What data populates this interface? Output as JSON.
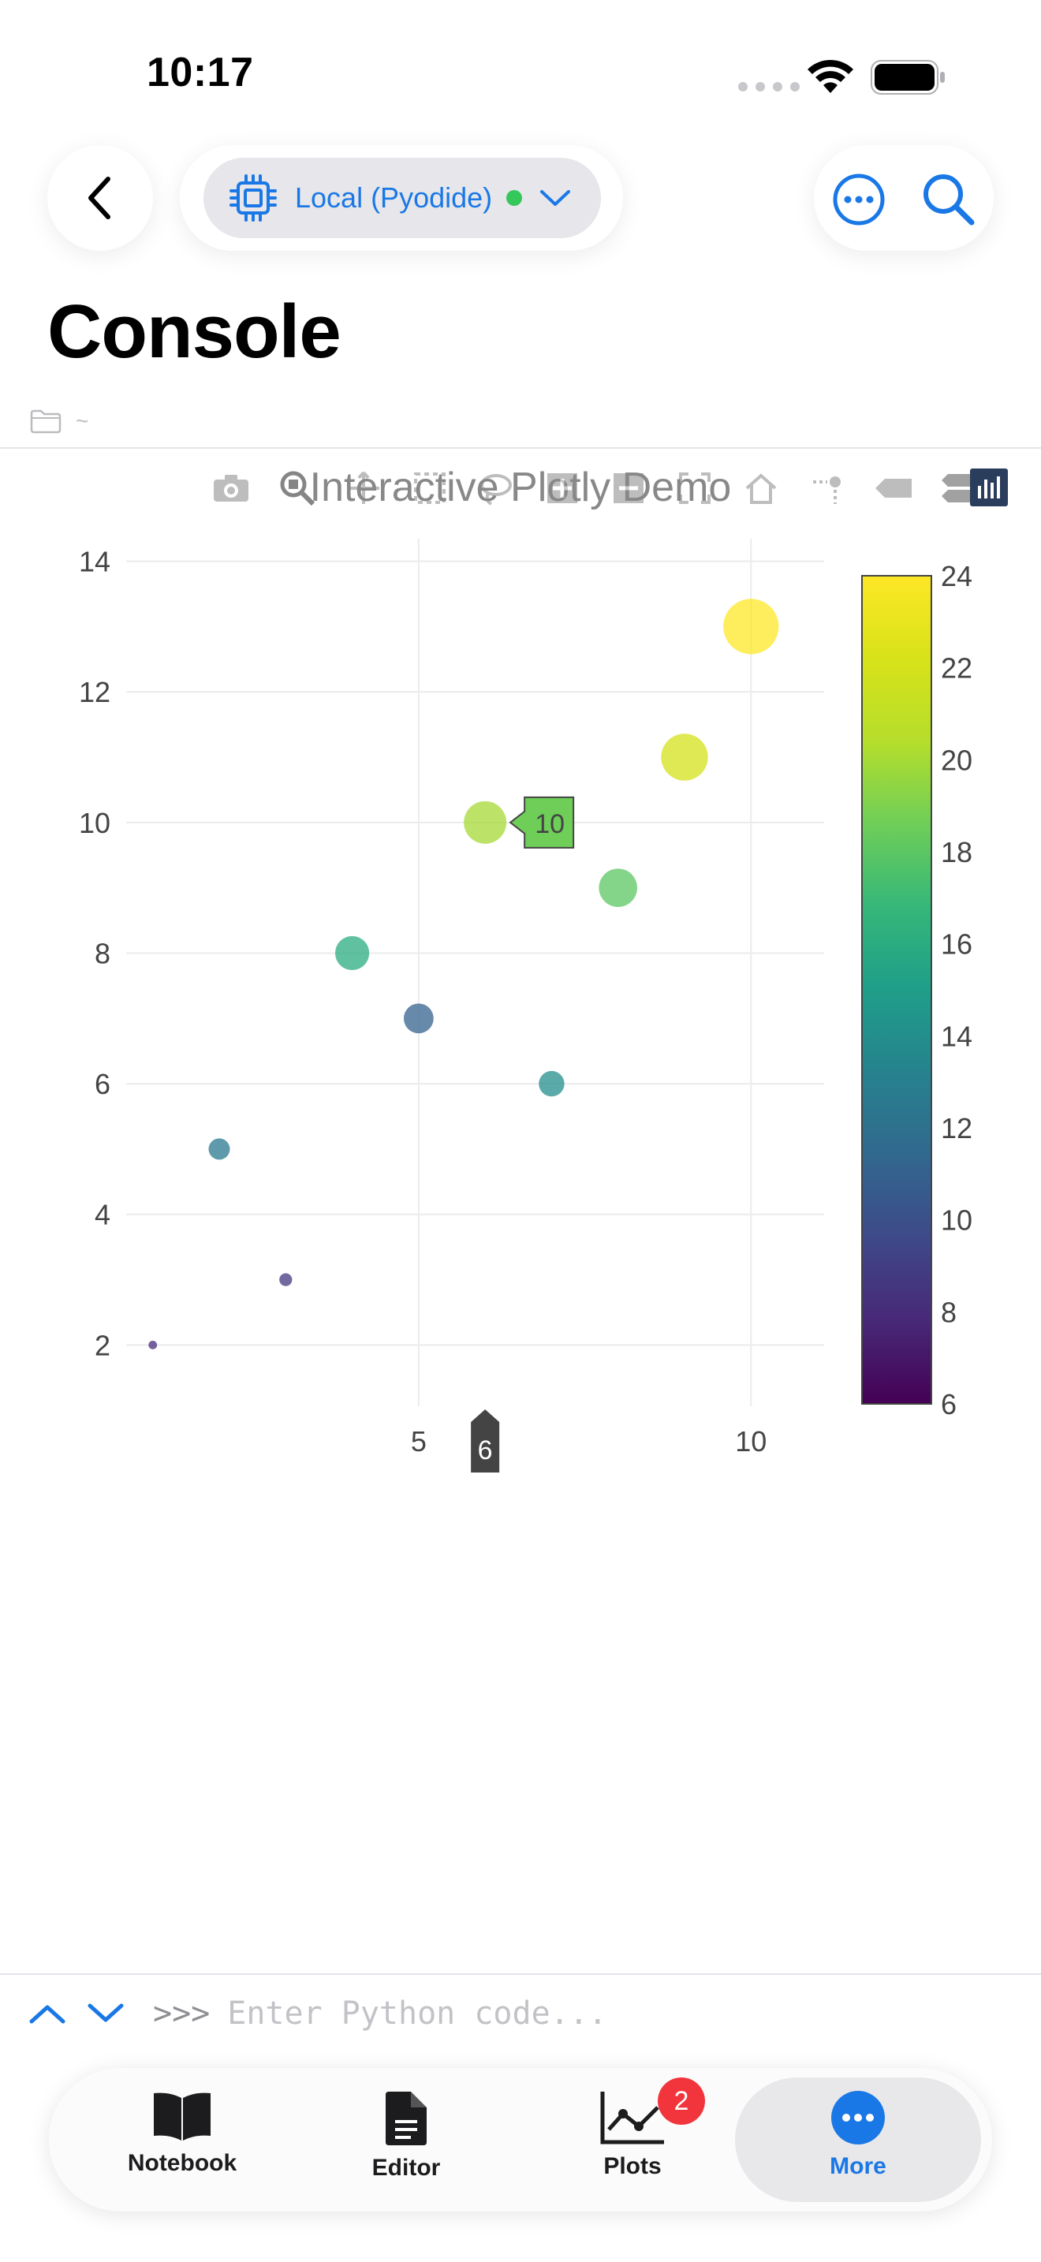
{
  "status": {
    "time": "10:17"
  },
  "nav": {
    "environment": "Local (Pyodide)"
  },
  "page": {
    "title": "Console",
    "path": "~"
  },
  "plot": {
    "title": "Interactive Plotly Demo",
    "hover_y_label": "10",
    "hover_x_label": "6",
    "colorbar_ticks": [
      "6",
      "8",
      "10",
      "12",
      "14",
      "16",
      "18",
      "20",
      "22",
      "24"
    ],
    "x_ticks": [
      "5",
      "10"
    ],
    "y_ticks": [
      "2",
      "4",
      "6",
      "8",
      "10",
      "12",
      "14"
    ]
  },
  "chart_data": {
    "type": "scatter",
    "title": "Interactive Plotly Demo",
    "x": [
      1,
      2,
      3,
      4,
      5,
      6,
      7,
      8,
      9,
      10
    ],
    "y": [
      2,
      5,
      3,
      8,
      7,
      10,
      6,
      9,
      11,
      13
    ],
    "marker_size": [
      2,
      5,
      3,
      8,
      7,
      10,
      6,
      9,
      11,
      13
    ],
    "marker_color": [
      8,
      12.5,
      8.5,
      16,
      11,
      20,
      14,
      18,
      22,
      24
    ],
    "colorscale": "Viridis",
    "xlim": [
      0.6,
      11.1
    ],
    "ylim": [
      1.4,
      14.2
    ],
    "colorbar_range": [
      6,
      24
    ],
    "grid": true,
    "hover_point": {
      "x": 6,
      "y": 10
    }
  },
  "console": {
    "prompt": ">>>",
    "placeholder": "Enter Python code..."
  },
  "tabs": [
    {
      "label": "Notebook"
    },
    {
      "label": "Editor"
    },
    {
      "label": "Plots",
      "badge": "2"
    },
    {
      "label": "More"
    }
  ],
  "colors": {
    "accent": "#1a78e6",
    "badge": "#f2353c",
    "status_dot": "#35c759"
  }
}
